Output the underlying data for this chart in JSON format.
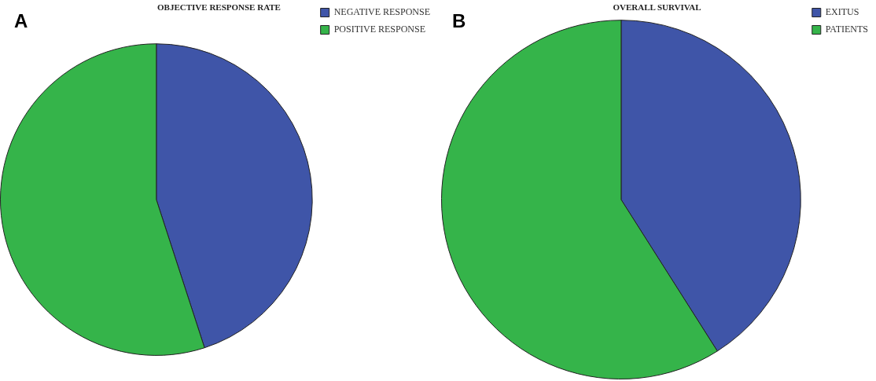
{
  "chart_data": [
    {
      "type": "pie",
      "title": "OBJECTIVE RESPONSE RATE",
      "categories": [
        "NEGATIVE RESPONSE",
        "POSITIVE RESPONSE"
      ],
      "values": [
        45,
        55
      ],
      "colors": [
        "#3f55a8",
        "#35b44a"
      ],
      "legend": "top right",
      "annotations": [
        "A"
      ]
    },
    {
      "type": "pie",
      "title": "OVERALL SURVIVAL",
      "categories": [
        "EXITUS",
        "PATIENTS"
      ],
      "values": [
        41,
        59
      ],
      "colors": [
        "#3f55a8",
        "#35b44a"
      ],
      "legend": "top right",
      "annotations": [
        "B"
      ]
    }
  ]
}
